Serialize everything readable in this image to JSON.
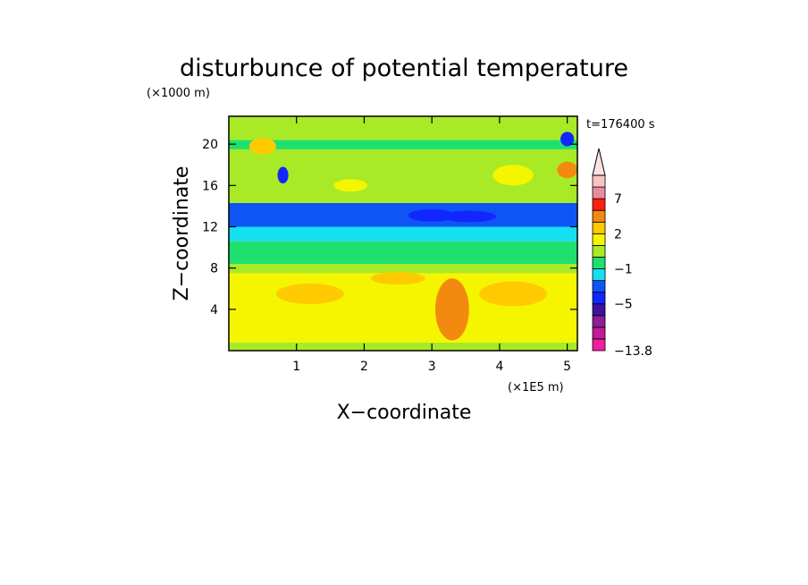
{
  "chart_data": {
    "type": "heatmap",
    "title": "disturbunce of potential temperature",
    "xlabel": "X−coordinate",
    "ylabel": "Z−coordinate",
    "x_unit": "(×1E5 m)",
    "y_unit": "(×1000 m)",
    "time_label": "t=176400 s",
    "xlim": [
      0,
      5.15
    ],
    "ylim": [
      0,
      22.7
    ],
    "x_ticks": [
      1,
      2,
      3,
      4,
      5
    ],
    "y_ticks": [
      4,
      8,
      12,
      16,
      20
    ],
    "colorbar": {
      "levels": [
        -13.8,
        -11,
        -9,
        -7,
        -5,
        -3,
        -2,
        -1,
        0,
        1,
        2,
        3,
        5,
        7,
        9,
        11
      ],
      "colors": [
        "#ee1f9e",
        "#c21a9a",
        "#8e1d96",
        "#3d12a0",
        "#1426ff",
        "#0f54f5",
        "#14e0f2",
        "#1fe06e",
        "#a8ea26",
        "#f5f500",
        "#ffca00",
        "#f28a10",
        "#ff1f10",
        "#e88aa0",
        "#f7c3c3"
      ],
      "tick_labels": [
        "−13.8",
        "−5",
        "−1",
        "2",
        "7"
      ],
      "tick_values": [
        -13.8,
        -5,
        -1,
        2,
        7
      ],
      "extend": "max"
    },
    "field": [
      {
        "zmin": 0,
        "zmax": 0.8,
        "value": 0.4
      },
      {
        "zmin": 0.8,
        "zmax": 7.5,
        "value": 1.5
      },
      {
        "zmin": 7.5,
        "zmax": 8.4,
        "value": 0.5
      },
      {
        "zmin": 8.4,
        "zmax": 10.6,
        "value": -0.5
      },
      {
        "zmin": 10.6,
        "zmax": 12.0,
        "value": -1.5
      },
      {
        "zmin": 12.0,
        "zmax": 14.3,
        "value": -2.5
      },
      {
        "zmin": 14.3,
        "zmax": 19.5,
        "value": 0.5
      },
      {
        "zmin": 19.5,
        "zmax": 20.4,
        "value": -0.5
      },
      {
        "zmin": 20.4,
        "zmax": 22.7,
        "value": 0.5
      }
    ],
    "anomalies": [
      {
        "x": 3.0,
        "z": 13.1,
        "rx": 0.35,
        "rz": 0.6,
        "value": -4.2
      },
      {
        "x": 3.55,
        "z": 13.0,
        "rx": 0.4,
        "rz": 0.55,
        "value": -4.2
      },
      {
        "x": 0.8,
        "z": 17.0,
        "rx": 0.08,
        "rz": 0.8,
        "value": -3.5
      },
      {
        "x": 5.0,
        "z": 20.5,
        "rx": 0.1,
        "rz": 0.7,
        "value": -3.5
      },
      {
        "x": 5.0,
        "z": 17.5,
        "rx": 0.15,
        "rz": 0.8,
        "value": 3.5
      },
      {
        "x": 3.3,
        "z": 4.0,
        "rx": 0.25,
        "rz": 3.0,
        "value": 3.5
      },
      {
        "x": 2.5,
        "z": 7.0,
        "rx": 0.4,
        "rz": 0.6,
        "value": 2.5
      },
      {
        "x": 1.2,
        "z": 5.5,
        "rx": 0.5,
        "rz": 1.0,
        "value": 2.5
      },
      {
        "x": 4.2,
        "z": 5.5,
        "rx": 0.5,
        "rz": 1.2,
        "value": 2.5
      },
      {
        "x": 0.5,
        "z": 19.8,
        "rx": 0.2,
        "rz": 0.8,
        "value": 2.5
      },
      {
        "x": 1.8,
        "z": 16.0,
        "rx": 0.25,
        "rz": 0.6,
        "value": 1.5
      },
      {
        "x": 4.2,
        "z": 17.0,
        "rx": 0.3,
        "rz": 1.0,
        "value": 1.5
      }
    ]
  }
}
